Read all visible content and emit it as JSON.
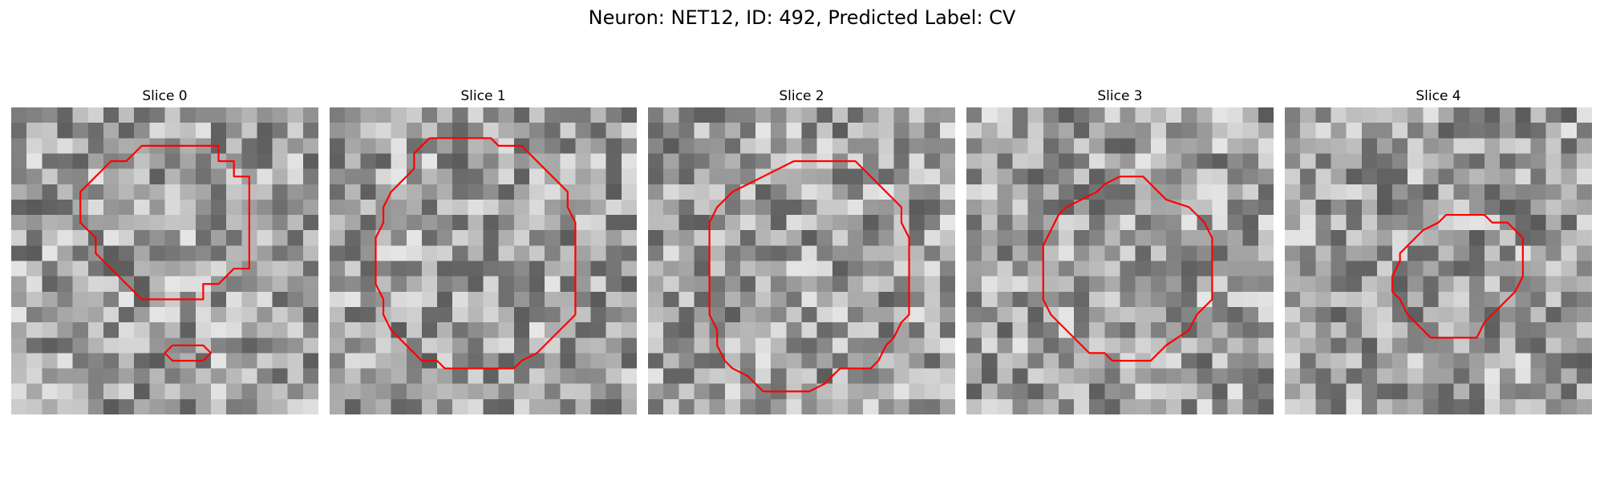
{
  "figure": {
    "title": "Neuron: NET12, ID: 492, Predicted Label: CV"
  },
  "slices": [
    {
      "label": "Slice 0",
      "contours": [
        [
          [
            9.5,
            2.5
          ],
          [
            13.5,
            2.5
          ],
          [
            13.5,
            3.5
          ],
          [
            14.5,
            3.5
          ],
          [
            14.5,
            4.5
          ],
          [
            15.5,
            4.5
          ],
          [
            15.5,
            10.5
          ],
          [
            14.5,
            10.5
          ],
          [
            13.5,
            11.5
          ],
          [
            12.5,
            11.5
          ],
          [
            12.5,
            12.5
          ],
          [
            10.5,
            12.5
          ],
          [
            8.5,
            12.5
          ],
          [
            7.5,
            11.5
          ],
          [
            6.5,
            10.5
          ],
          [
            5.5,
            9.5
          ],
          [
            5.5,
            8.5
          ],
          [
            4.5,
            7.5
          ],
          [
            4.5,
            5.5
          ],
          [
            5.5,
            4.5
          ],
          [
            6.5,
            3.5
          ],
          [
            7.5,
            3.5
          ],
          [
            8.5,
            2.5
          ],
          [
            9.5,
            2.5
          ]
        ],
        [
          [
            10.5,
            15.5
          ],
          [
            12.5,
            15.5
          ],
          [
            13.0,
            16.0
          ],
          [
            12.5,
            16.5
          ],
          [
            10.5,
            16.5
          ],
          [
            10.0,
            16.0
          ],
          [
            10.5,
            15.5
          ]
        ]
      ]
    },
    {
      "label": "Slice 1",
      "contours": [
        [
          [
            6.5,
            2.0
          ],
          [
            10.5,
            2.0
          ],
          [
            11.0,
            2.5
          ],
          [
            12.5,
            2.5
          ],
          [
            13.0,
            3.0
          ],
          [
            14.5,
            4.5
          ],
          [
            15.5,
            5.5
          ],
          [
            15.5,
            6.5
          ],
          [
            16.0,
            7.5
          ],
          [
            16.0,
            13.5
          ],
          [
            15.5,
            14.0
          ],
          [
            14.5,
            15.0
          ],
          [
            13.5,
            16.0
          ],
          [
            12.5,
            16.5
          ],
          [
            12.0,
            17.0
          ],
          [
            7.5,
            17.0
          ],
          [
            7.0,
            16.5
          ],
          [
            6.0,
            16.5
          ],
          [
            5.0,
            15.5
          ],
          [
            4.0,
            14.5
          ],
          [
            3.5,
            13.5
          ],
          [
            3.5,
            12.5
          ],
          [
            3.0,
            11.5
          ],
          [
            3.0,
            8.5
          ],
          [
            3.5,
            7.5
          ],
          [
            3.5,
            6.5
          ],
          [
            4.0,
            5.5
          ],
          [
            5.5,
            4.0
          ],
          [
            5.5,
            3.0
          ],
          [
            6.5,
            2.0
          ]
        ]
      ]
    },
    {
      "label": "Slice 2",
      "contours": [
        [
          [
            9.5,
            3.5
          ],
          [
            13.5,
            3.5
          ],
          [
            14.5,
            4.5
          ],
          [
            15.5,
            5.5
          ],
          [
            16.5,
            6.5
          ],
          [
            16.5,
            7.5
          ],
          [
            17.0,
            8.5
          ],
          [
            17.0,
            13.5
          ],
          [
            16.5,
            14.0
          ],
          [
            16.0,
            15.0
          ],
          [
            15.5,
            15.5
          ],
          [
            15.0,
            16.5
          ],
          [
            14.5,
            17.0
          ],
          [
            12.5,
            17.0
          ],
          [
            11.5,
            18.0
          ],
          [
            10.5,
            18.5
          ],
          [
            8.5,
            18.5
          ],
          [
            7.5,
            18.5
          ],
          [
            6.5,
            17.5
          ],
          [
            5.5,
            17.0
          ],
          [
            5.0,
            16.5
          ],
          [
            4.5,
            15.5
          ],
          [
            4.5,
            14.5
          ],
          [
            4.0,
            13.5
          ],
          [
            4.0,
            7.5
          ],
          [
            4.5,
            6.5
          ],
          [
            5.0,
            6.0
          ],
          [
            5.5,
            5.5
          ],
          [
            6.5,
            5.0
          ],
          [
            7.5,
            4.5
          ],
          [
            8.5,
            4.0
          ],
          [
            9.5,
            3.5
          ]
        ]
      ]
    },
    {
      "label": "Slice 3",
      "contours": [
        [
          [
            10.0,
            4.5
          ],
          [
            11.5,
            4.5
          ],
          [
            12.5,
            5.5
          ],
          [
            13.0,
            6.0
          ],
          [
            14.5,
            6.5
          ],
          [
            15.5,
            7.5
          ],
          [
            16.0,
            8.5
          ],
          [
            16.0,
            12.5
          ],
          [
            15.5,
            13.0
          ],
          [
            15.0,
            13.5
          ],
          [
            14.5,
            14.5
          ],
          [
            13.0,
            15.5
          ],
          [
            12.0,
            16.5
          ],
          [
            9.5,
            16.5
          ],
          [
            9.0,
            16.0
          ],
          [
            8.0,
            16.0
          ],
          [
            7.0,
            15.0
          ],
          [
            6.0,
            14.0
          ],
          [
            5.5,
            13.5
          ],
          [
            5.0,
            12.5
          ],
          [
            5.0,
            9.0
          ],
          [
            5.5,
            8.0
          ],
          [
            6.0,
            7.0
          ],
          [
            6.5,
            6.5
          ],
          [
            7.5,
            6.0
          ],
          [
            8.5,
            5.5
          ],
          [
            9.0,
            5.0
          ],
          [
            10.0,
            4.5
          ]
        ]
      ]
    },
    {
      "label": "Slice 4",
      "contours": [
        [
          [
            10.5,
            7.0
          ],
          [
            13.0,
            7.0
          ],
          [
            13.5,
            7.5
          ],
          [
            14.5,
            7.5
          ],
          [
            15.0,
            8.0
          ],
          [
            15.5,
            8.5
          ],
          [
            15.5,
            9.5
          ],
          [
            15.5,
            11.0
          ],
          [
            15.0,
            12.0
          ],
          [
            14.0,
            13.0
          ],
          [
            13.0,
            14.0
          ],
          [
            12.5,
            15.0
          ],
          [
            10.5,
            15.0
          ],
          [
            9.5,
            15.0
          ],
          [
            9.0,
            14.5
          ],
          [
            8.0,
            13.5
          ],
          [
            7.5,
            12.5
          ],
          [
            7.0,
            12.0
          ],
          [
            7.0,
            11.0
          ],
          [
            7.5,
            10.0
          ],
          [
            7.5,
            9.5
          ],
          [
            8.5,
            8.5
          ],
          [
            9.0,
            8.0
          ],
          [
            10.0,
            7.5
          ],
          [
            10.5,
            7.0
          ]
        ]
      ]
    }
  ],
  "colors": {
    "contour": "#ff0000"
  }
}
